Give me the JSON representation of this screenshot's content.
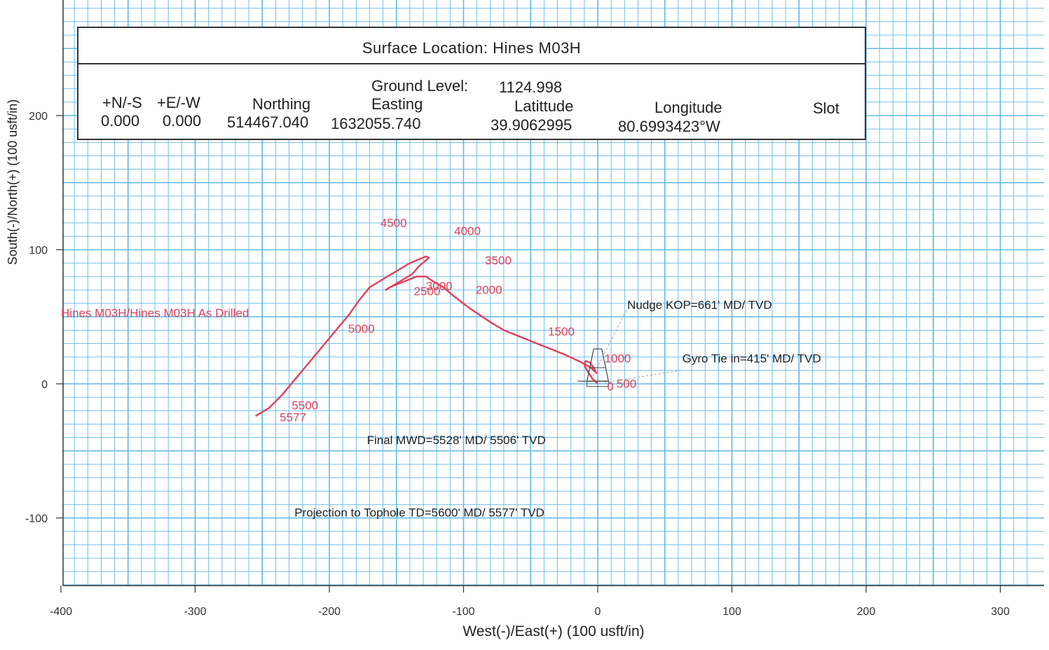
{
  "chart_data": {
    "type": "line",
    "title": "",
    "xlabel": "West(-)/East(+) (100 usft/in)",
    "ylabel": "South(-)/North(+) (100 usft/in)",
    "xlim": [
      -400,
      320
    ],
    "ylim": [
      -150,
      280
    ],
    "x_ticks": [
      -400,
      -300,
      -200,
      -100,
      0,
      100,
      200,
      300
    ],
    "y_ticks": [
      200,
      100,
      0,
      -100
    ],
    "grid": true,
    "series": [
      {
        "name": "Hines M03H/Hines M03H As Drilled",
        "color": "#e0405a",
        "x": [
          0,
          -4,
          -8,
          -10,
          -9,
          -6,
          -3,
          -1,
          -5,
          -12,
          -25,
          -45,
          -60,
          -70,
          -80,
          -95,
          -108,
          -115,
          -122,
          -128,
          -135,
          -145,
          -155,
          -158,
          -148,
          -138,
          -133,
          -128,
          -126,
          -128,
          -140,
          -150,
          -160,
          -170,
          -178,
          -185,
          -195,
          -205,
          -215,
          -225,
          -235,
          -245,
          -255
        ],
        "y": [
          0,
          4,
          10,
          14,
          17,
          16,
          12,
          8,
          12,
          16,
          22,
          30,
          36,
          40,
          46,
          56,
          66,
          72,
          76,
          80,
          80,
          76,
          72,
          70,
          76,
          82,
          88,
          92,
          94,
          95,
          90,
          84,
          78,
          72,
          62,
          52,
          40,
          28,
          16,
          4,
          -8,
          -18,
          -24
        ]
      }
    ],
    "md_labels": [
      {
        "text": "0",
        "x": 7,
        "y": -5
      },
      {
        "text": "500",
        "x": 14,
        "y": -3
      },
      {
        "text": "1000",
        "x": 5,
        "y": 16
      },
      {
        "text": "1500",
        "x": -37,
        "y": 36
      },
      {
        "text": "2000",
        "x": -91,
        "y": 67
      },
      {
        "text": "2500",
        "x": -137,
        "y": 66
      },
      {
        "text": "3000",
        "x": -128,
        "y": 70
      },
      {
        "text": "3500",
        "x": -84,
        "y": 89
      },
      {
        "text": "4000",
        "x": -107,
        "y": 111
      },
      {
        "text": "4500",
        "x": -162,
        "y": 117
      },
      {
        "text": "5000",
        "x": -186,
        "y": 38
      },
      {
        "text": "5500",
        "x": -228,
        "y": -19
      },
      {
        "text": "5577",
        "x": -237,
        "y": -28
      }
    ],
    "annotations": [
      {
        "text": "Hines M03H/Hines M03H As Drilled",
        "x": -400,
        "y": 50,
        "color": "#e0405a"
      },
      {
        "text": "Nudge KOP=661' MD/ TVD",
        "x": 22,
        "y": 56,
        "color": "#222222"
      },
      {
        "text": "Gyro Tie in=415' MD/ TVD",
        "x": 63,
        "y": 16,
        "color": "#222222"
      },
      {
        "text": "Final MWD=5528' MD/ 5506' TVD",
        "x": -172,
        "y": -45,
        "color": "#222222"
      },
      {
        "text": "Projection to Tophole TD=5600' MD/ 5577' TVD",
        "x": -226,
        "y": -99,
        "color": "#222222"
      }
    ]
  },
  "info_box": {
    "title": "Surface Location: Hines M03H",
    "ground_level_label": "Ground Level:",
    "ground_level_value": "1124.998",
    "columns": [
      {
        "header": "+N/-S",
        "value": "0.000"
      },
      {
        "header": "+E/-W",
        "value": "0.000"
      },
      {
        "header": "Northing",
        "value": "514467.040"
      },
      {
        "header": "Easting",
        "value": "1632055.740"
      },
      {
        "header": "Latittude",
        "value": "39.9062995"
      },
      {
        "header": "Longitude",
        "value": "80.6993423°W"
      },
      {
        "header": "Slot",
        "value": ""
      }
    ]
  },
  "colors": {
    "grid": "#5fb8e8",
    "trajectory": "#e0405a",
    "axis": "#333333"
  }
}
